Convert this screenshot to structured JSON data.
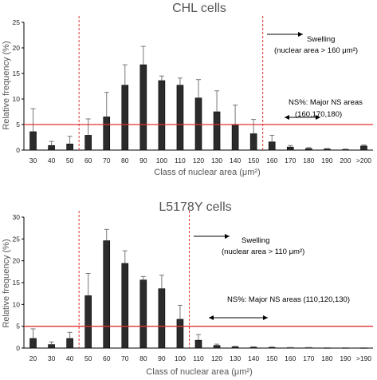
{
  "chart_data": [
    {
      "type": "bar",
      "title": "CHL cells",
      "xlabel": "Class of nuclear area (μm²)",
      "ylabel": "Relative frequency (%)",
      "ylim": [
        0,
        25
      ],
      "yticks": [
        0,
        5,
        10,
        15,
        20,
        25
      ],
      "grid": false,
      "categories": [
        "30",
        "40",
        "50",
        "60",
        "70",
        "80",
        "90",
        "100",
        "110",
        "120",
        "130",
        "140",
        "150",
        "160",
        "170",
        "180",
        "190",
        "200",
        ">200"
      ],
      "values": [
        3.6,
        0.9,
        1.2,
        2.9,
        6.5,
        12.7,
        16.7,
        13.6,
        12.7,
        10.2,
        7.5,
        5.0,
        3.2,
        1.6,
        0.6,
        0.3,
        0.2,
        0.1,
        0.8
      ],
      "errors": [
        4.5,
        0.8,
        1.5,
        3.2,
        4.8,
        4.0,
        3.6,
        0.9,
        1.4,
        3.6,
        4.1,
        3.8,
        2.8,
        1.3,
        0.3,
        0.2,
        0.1,
        0.1,
        0.2
      ],
      "reference_line": {
        "y": 5,
        "color": "#e03030"
      },
      "dashed_lines_after": [
        "50",
        "150"
      ],
      "annotations": {
        "swelling": "Swelling",
        "swelling_rule": "(nuclear area > 160  μm²)",
        "ns_line1": "NS%: Major NS areas",
        "ns_line2": "(160,170,180)"
      }
    },
    {
      "type": "bar",
      "title": "L5178Y cells",
      "xlabel": "Class of nuclear area (μm²)",
      "ylabel": "Relative frequency (%)",
      "ylim": [
        0,
        30
      ],
      "yticks": [
        0,
        5,
        10,
        15,
        20,
        25,
        30
      ],
      "grid": false,
      "categories": [
        "20",
        "30",
        "40",
        "50",
        "60",
        "70",
        "80",
        "90",
        "100",
        "110",
        "120",
        "130",
        "140",
        "150",
        "160",
        "170",
        "180",
        "190",
        ">190"
      ],
      "values": [
        2.2,
        0.8,
        2.2,
        12.0,
        24.6,
        19.4,
        15.6,
        13.6,
        6.6,
        1.8,
        0.6,
        0.3,
        0.2,
        0.15,
        0.1,
        0.1,
        0.05,
        0.05,
        0.05
      ],
      "errors": [
        2.2,
        0.6,
        1.4,
        5.1,
        2.6,
        2.9,
        0.8,
        3.1,
        3.2,
        1.3,
        0.3,
        0.1,
        0.1,
        0.1,
        0.05,
        0.05,
        0.05,
        0.05,
        0.05
      ],
      "reference_line": {
        "y": 5,
        "color": "#e03030"
      },
      "dashed_lines_after": [
        "40",
        "100"
      ],
      "annotations": {
        "swelling": "Swelling",
        "swelling_rule": "(nuclear area > 110  μm²)",
        "ns_line1": "NS%: Major NS areas (110,120,130)",
        "ns_line2": ""
      }
    }
  ]
}
